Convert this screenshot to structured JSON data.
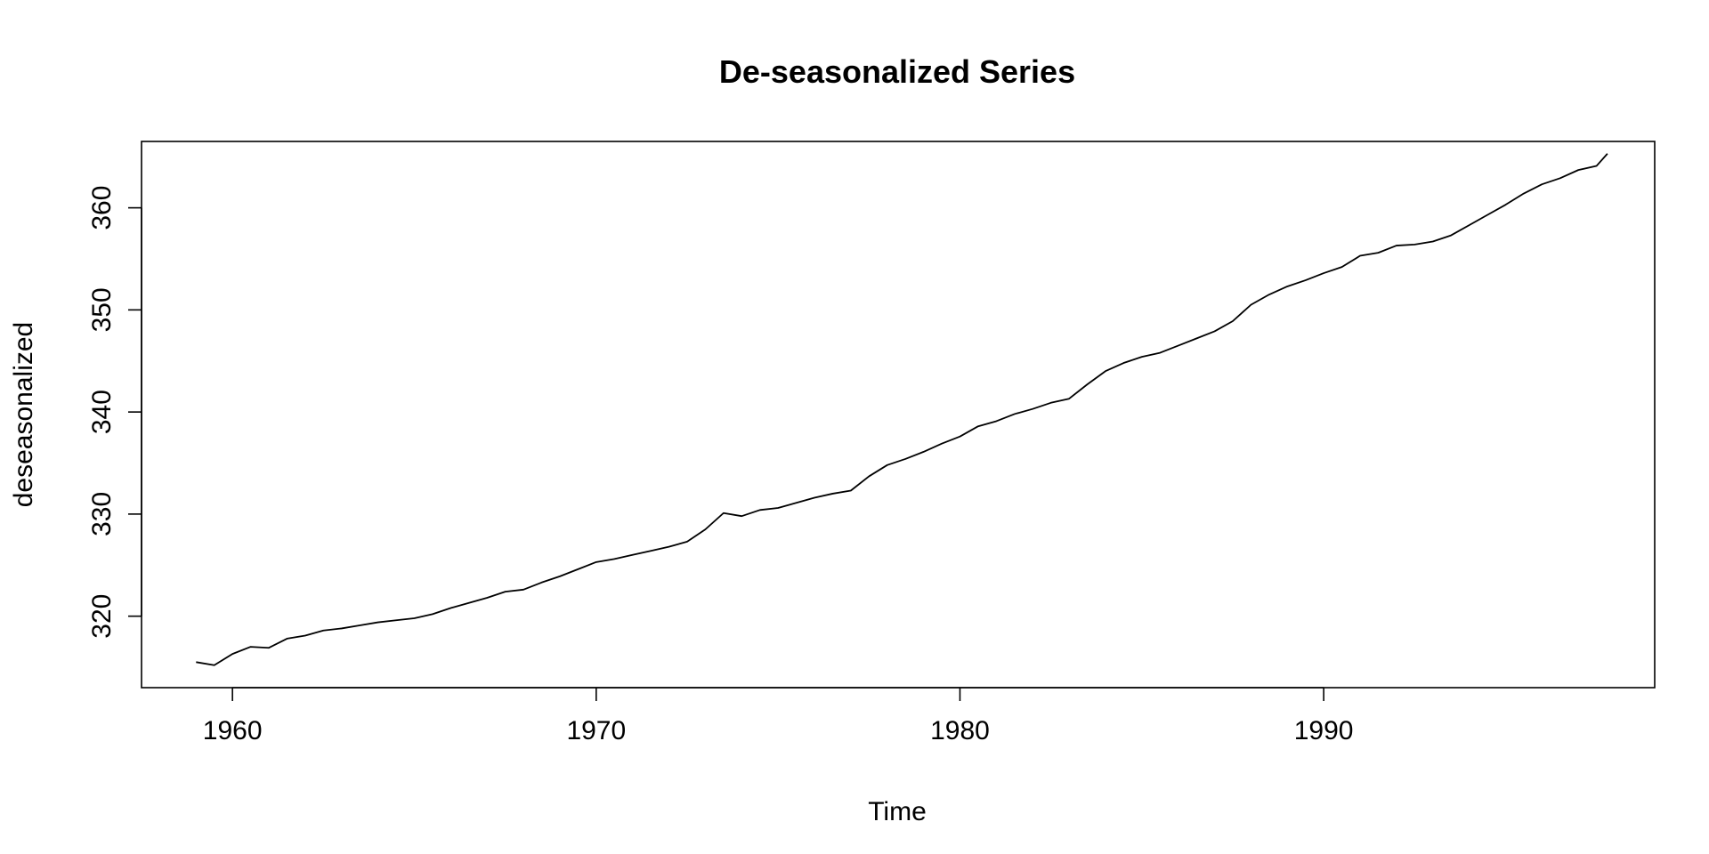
{
  "chart_data": {
    "type": "line",
    "title": "De-seasonalized Series",
    "xlabel": "Time",
    "ylabel": "deseasonalized",
    "xlim": [
      1957.5,
      1999.1
    ],
    "ylim": [
      313.0,
      366.5
    ],
    "x_ticks": [
      1960,
      1970,
      1980,
      1990
    ],
    "y_ticks": [
      320,
      330,
      340,
      350,
      360
    ],
    "grid": false,
    "legend": "none",
    "series": [
      {
        "x": [
          1959.0,
          1959.5,
          1960.0,
          1960.5,
          1961.0,
          1961.5,
          1962.0,
          1962.5,
          1963.0,
          1963.5,
          1964.0,
          1964.5,
          1965.0,
          1965.5,
          1966.0,
          1966.5,
          1967.0,
          1967.5,
          1968.0,
          1968.5,
          1969.0,
          1969.5,
          1970.0,
          1970.5,
          1971.0,
          1971.5,
          1972.0,
          1972.5,
          1973.0,
          1973.5,
          1974.0,
          1974.5,
          1975.0,
          1975.5,
          1976.0,
          1976.5,
          1977.0,
          1977.5,
          1978.0,
          1978.5,
          1979.0,
          1979.5,
          1980.0,
          1980.5,
          1981.0,
          1981.5,
          1982.0,
          1982.5,
          1983.0,
          1983.5,
          1984.0,
          1984.5,
          1985.0,
          1985.5,
          1986.0,
          1986.5,
          1987.0,
          1987.5,
          1988.0,
          1988.5,
          1989.0,
          1989.5,
          1990.0,
          1990.5,
          1991.0,
          1991.5,
          1992.0,
          1992.5,
          1993.0,
          1993.5,
          1994.0,
          1994.5,
          1995.0,
          1995.5,
          1996.0,
          1996.5,
          1997.0,
          1997.5,
          1997.8
        ],
        "values": [
          315.5,
          315.2,
          316.3,
          317.0,
          316.9,
          317.8,
          318.1,
          318.6,
          318.8,
          319.1,
          319.4,
          319.6,
          319.8,
          320.2,
          320.8,
          321.3,
          321.8,
          322.4,
          322.6,
          323.3,
          323.9,
          324.6,
          325.3,
          325.6,
          326.0,
          326.4,
          326.8,
          327.3,
          328.5,
          330.1,
          329.8,
          330.4,
          330.6,
          331.1,
          331.6,
          332.0,
          332.3,
          333.7,
          334.8,
          335.4,
          336.1,
          336.9,
          337.6,
          338.6,
          339.1,
          339.8,
          340.3,
          340.9,
          341.3,
          342.7,
          344.0,
          344.8,
          345.4,
          345.8,
          346.5,
          347.2,
          347.9,
          348.9,
          350.5,
          351.5,
          352.3,
          352.9,
          353.6,
          354.2,
          355.3,
          355.6,
          356.3,
          356.4,
          356.7,
          357.3,
          358.3,
          359.3,
          360.3,
          361.4,
          362.3,
          362.9,
          363.7,
          364.1,
          365.3
        ]
      }
    ]
  }
}
